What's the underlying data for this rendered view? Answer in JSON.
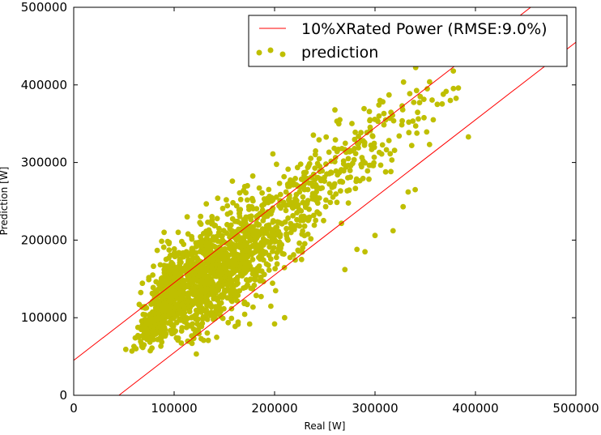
{
  "chart_data": {
    "type": "scatter",
    "title": "",
    "xlabel": "Real [W]",
    "ylabel": "Prediction [W]",
    "xlim": [
      0,
      500000
    ],
    "ylim": [
      0,
      500000
    ],
    "x_ticks": [
      "0",
      "100000",
      "200000",
      "300000",
      "400000",
      "500000"
    ],
    "x_tick_values": [
      0,
      100000,
      200000,
      300000,
      400000,
      500000
    ],
    "y_ticks": [
      "0",
      "100000",
      "200000",
      "300000",
      "400000",
      "500000"
    ],
    "y_tick_values": [
      0,
      100000,
      200000,
      300000,
      400000,
      500000
    ],
    "grid": false,
    "legend_position": "top-right",
    "series": [
      {
        "name": "10%XRated Power (RMSE:9.0%)",
        "kind": "band-lines",
        "color": "#ff0000",
        "upper_line": [
          [
            0,
            45000
          ],
          [
            455000,
            500000
          ]
        ],
        "lower_line": [
          [
            45000,
            0
          ],
          [
            500000,
            455000
          ]
        ]
      },
      {
        "name": "prediction",
        "kind": "points",
        "color": "#bfbf00",
        "clusters": [
          {
            "cx": 95000,
            "cy": 130000,
            "sx": 11000,
            "sy": 30000,
            "n": 520,
            "rho": 0.5
          },
          {
            "cx": 78000,
            "cy": 90000,
            "sx": 9000,
            "sy": 14000,
            "n": 70,
            "rho": 0.75
          },
          {
            "cx": 128000,
            "cy": 150000,
            "sx": 11000,
            "sy": 36000,
            "n": 380,
            "rho": 0.45
          },
          {
            "cx": 155000,
            "cy": 170000,
            "sx": 15000,
            "sy": 38000,
            "n": 340,
            "rho": 0.5
          },
          {
            "cx": 185000,
            "cy": 195000,
            "sx": 20000,
            "sy": 38000,
            "n": 240,
            "rho": 0.6
          },
          {
            "cx": 225000,
            "cy": 245000,
            "sx": 22000,
            "sy": 40000,
            "n": 160,
            "rho": 0.6
          },
          {
            "cx": 275000,
            "cy": 300000,
            "sx": 25000,
            "sy": 40000,
            "n": 110,
            "rho": 0.6
          },
          {
            "cx": 330000,
            "cy": 350000,
            "sx": 25000,
            "sy": 35000,
            "n": 45,
            "rho": 0.5
          }
        ],
        "extra_points": [
          [
            58000,
            57000
          ],
          [
            60000,
            63000
          ],
          [
            62000,
            60000
          ],
          [
            70000,
            65000
          ],
          [
            73000,
            72000
          ],
          [
            90000,
            210000
          ],
          [
            104000,
            210000
          ],
          [
            113000,
            230000
          ],
          [
            158000,
            276000
          ],
          [
            173000,
            270000
          ],
          [
            200000,
            92000
          ],
          [
            210000,
            100000
          ],
          [
            265000,
            355000
          ],
          [
            270000,
            162000
          ],
          [
            282000,
            188000
          ],
          [
            290000,
            185000
          ],
          [
            295000,
            355000
          ],
          [
            300000,
            206000
          ],
          [
            305000,
            380000
          ],
          [
            318000,
            212000
          ],
          [
            328000,
            243000
          ],
          [
            333000,
            262000
          ],
          [
            340000,
            265000
          ],
          [
            345000,
            385000
          ],
          [
            352000,
            395000
          ],
          [
            358000,
            355000
          ],
          [
            362000,
            375000
          ],
          [
            368000,
            388000
          ],
          [
            375000,
            380000
          ],
          [
            378000,
            418000
          ],
          [
            383000,
            396000
          ],
          [
            393000,
            333000
          ]
        ]
      }
    ]
  }
}
